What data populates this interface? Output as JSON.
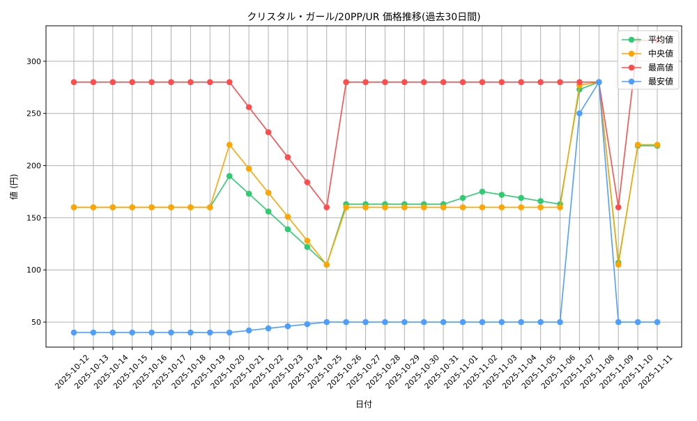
{
  "chart_data": {
    "type": "line",
    "title": "クリスタル・ガール/20PP/UR 価格推移(過去30日間)",
    "xlabel": "日付",
    "ylabel": "値 (円)",
    "ylim": [
      26,
      334
    ],
    "yticks": [
      50,
      100,
      150,
      200,
      250,
      300
    ],
    "grid": true,
    "legend_position": "top-right",
    "x": [
      "2025-10-12",
      "2025-10-13",
      "2025-10-14",
      "2025-10-15",
      "2025-10-16",
      "2025-10-17",
      "2025-10-18",
      "2025-10-19",
      "2025-10-20",
      "2025-10-21",
      "2025-10-22",
      "2025-10-23",
      "2025-10-24",
      "2025-10-25",
      "2025-10-26",
      "2025-10-27",
      "2025-10-28",
      "2025-10-29",
      "2025-10-30",
      "2025-10-31",
      "2025-11-01",
      "2025-11-02",
      "2025-11-03",
      "2025-11-04",
      "2025-11-05",
      "2025-11-06",
      "2025-11-07",
      "2025-11-08",
      "2025-11-09",
      "2025-11-10",
      "2025-11-11"
    ],
    "series": [
      {
        "name": "平均値",
        "color": "#2ecc71",
        "values": [
          160,
          160,
          160,
          160,
          160,
          160,
          160,
          160,
          190,
          173,
          156,
          139,
          122,
          105,
          163,
          163,
          163,
          163,
          163,
          163,
          169,
          175,
          172,
          169,
          166,
          163,
          273,
          280,
          107,
          219,
          219
        ]
      },
      {
        "name": "中央値",
        "color": "#ffa500",
        "values": [
          160,
          160,
          160,
          160,
          160,
          160,
          160,
          160,
          220,
          197,
          174,
          151,
          128,
          105,
          160,
          160,
          160,
          160,
          160,
          160,
          160,
          160,
          160,
          160,
          160,
          160,
          277,
          280,
          105,
          220,
          220
        ]
      },
      {
        "name": "最高値",
        "color": "#ff4d4d",
        "values": [
          280,
          280,
          280,
          280,
          280,
          280,
          280,
          280,
          280,
          256,
          232,
          208,
          184,
          160,
          280,
          280,
          280,
          280,
          280,
          280,
          280,
          280,
          280,
          280,
          280,
          280,
          280,
          280,
          160,
          320,
          320
        ]
      },
      {
        "name": "最安値",
        "color": "#4d9fff",
        "values": [
          40,
          40,
          40,
          40,
          40,
          40,
          40,
          40,
          40,
          42,
          44,
          46,
          48,
          50,
          50,
          50,
          50,
          50,
          50,
          50,
          50,
          50,
          50,
          50,
          50,
          50,
          250,
          280,
          50,
          50,
          50
        ]
      }
    ]
  }
}
